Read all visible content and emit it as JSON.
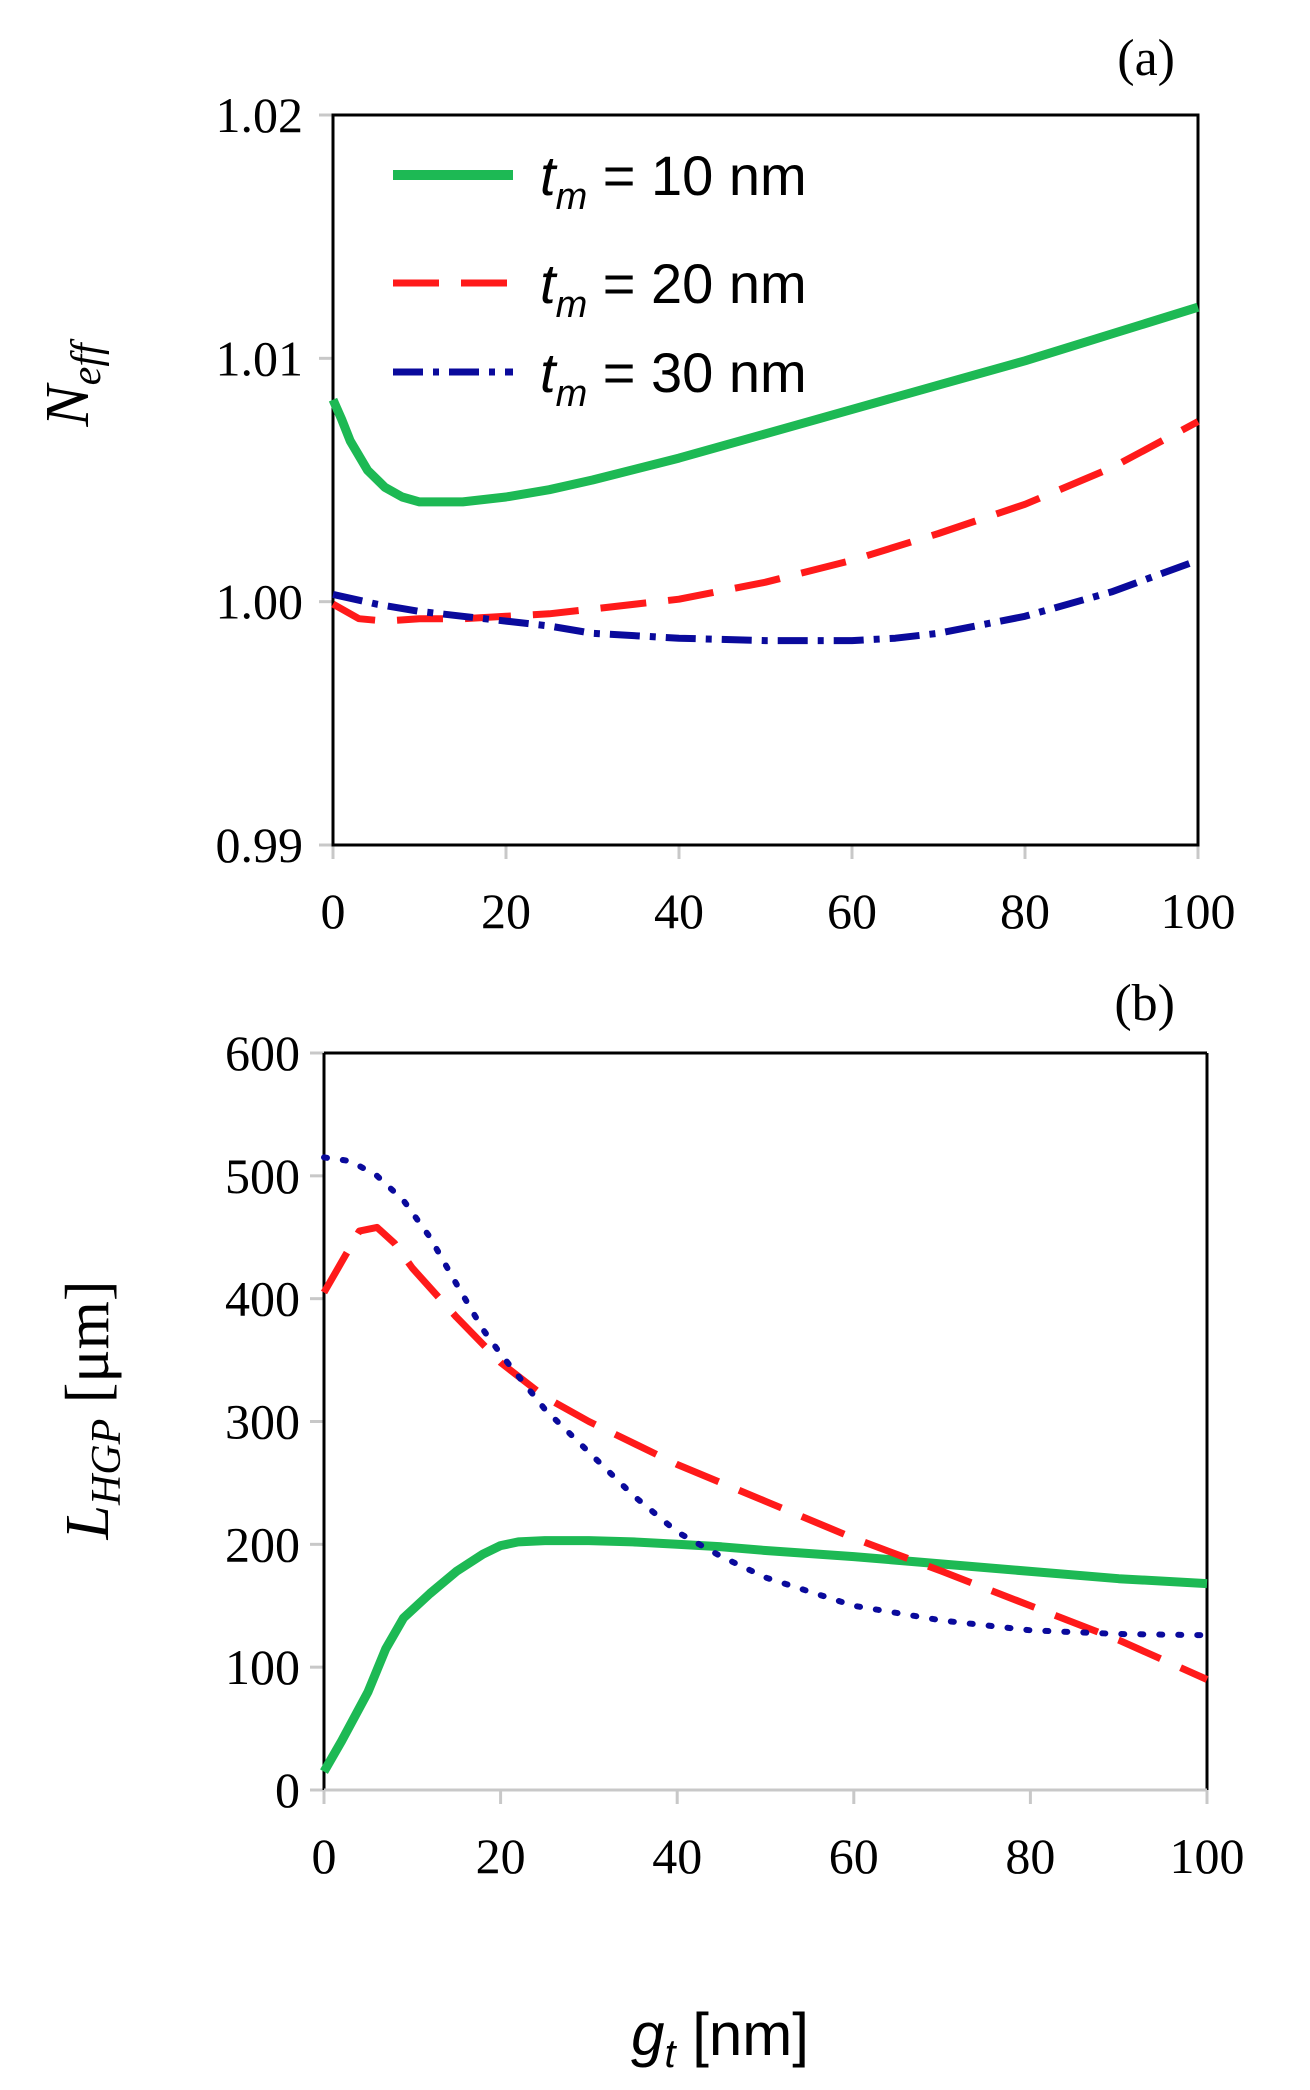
{
  "figure": {
    "xlabel_main": "g",
    "xlabel_sub": "t",
    "xlabel_unit": " [nm]"
  },
  "colors": {
    "green": "#1db954",
    "red": "#ff1a1a",
    "blue": "#0a0a9c",
    "axis": "#000000",
    "tick": "#c8c8c8"
  },
  "chart_data": [
    {
      "id": "a",
      "type": "line",
      "panel_label": "(a)",
      "ylabel_main": "N",
      "ylabel_sub": "eff",
      "xlim": [
        0,
        100
      ],
      "ylim": [
        0.99,
        1.02
      ],
      "x_ticks": [
        "0",
        "20",
        "40",
        "60",
        "80",
        "100"
      ],
      "y_ticks": [
        "0.99",
        "1.00",
        "1.01",
        "1.02"
      ],
      "legend": {
        "placement": "top-left",
        "prefix": "t",
        "prefix_sub": "m"
      },
      "series": [
        {
          "name": "tm = 10 nm",
          "label": " = 10 nm",
          "color": "#1db954",
          "style": "solid",
          "x": [
            0,
            1,
            2,
            4,
            6,
            8,
            10,
            12,
            15,
            20,
            25,
            30,
            40,
            50,
            60,
            70,
            80,
            90,
            100
          ],
          "y": [
            1.0083,
            1.0075,
            1.0066,
            1.0054,
            1.0047,
            1.0043,
            1.0041,
            1.0041,
            1.0041,
            1.0043,
            1.0046,
            1.005,
            1.0059,
            1.0069,
            1.0079,
            1.0089,
            1.0099,
            1.011,
            1.0121
          ]
        },
        {
          "name": "tm = 20 nm",
          "label": " = 20 nm",
          "color": "#ff1a1a",
          "style": "dashed",
          "x": [
            0,
            3,
            6,
            10,
            15,
            20,
            25,
            30,
            40,
            50,
            60,
            70,
            80,
            90,
            100
          ],
          "y": [
            0.9999,
            0.9993,
            0.9992,
            0.9993,
            0.9993,
            0.9994,
            0.9995,
            0.9997,
            1.0001,
            1.0008,
            1.0017,
            1.0028,
            1.004,
            1.0055,
            1.0074
          ]
        },
        {
          "name": "tm = 30 nm",
          "label": " = 30 nm",
          "color": "#0a0a9c",
          "style": "dashdot",
          "x": [
            0,
            5,
            10,
            15,
            20,
            25,
            30,
            40,
            50,
            60,
            65,
            70,
            80,
            90,
            100
          ],
          "y": [
            1.0003,
            0.9999,
            0.9996,
            0.9994,
            0.9992,
            0.999,
            0.9987,
            0.9985,
            0.9984,
            0.9984,
            0.9985,
            0.9987,
            0.9994,
            1.0004,
            1.0017
          ]
        }
      ]
    },
    {
      "id": "b",
      "type": "line",
      "panel_label": "(b)",
      "ylabel_main": "L",
      "ylabel_sub": "HGP",
      "ylabel_unit": " [μm]",
      "xlim": [
        0,
        100
      ],
      "ylim": [
        0,
        600
      ],
      "x_ticks": [
        "0",
        "20",
        "40",
        "60",
        "80",
        "100"
      ],
      "y_ticks": [
        "0",
        "100",
        "200",
        "300",
        "400",
        "500",
        "600"
      ],
      "series": [
        {
          "name": "tm = 10 nm",
          "color": "#1db954",
          "style": "solid",
          "x": [
            0,
            2,
            5,
            7,
            9,
            12,
            15,
            18,
            20,
            22,
            25,
            30,
            35,
            40,
            45,
            50,
            60,
            70,
            80,
            90,
            100
          ],
          "y": [
            15,
            40,
            80,
            115,
            140,
            160,
            178,
            192,
            199,
            202,
            203,
            203,
            202,
            200,
            198,
            195,
            190,
            184,
            178,
            172,
            168
          ]
        },
        {
          "name": "tm = 20 nm",
          "color": "#ff1a1a",
          "style": "dashed",
          "x": [
            0,
            2,
            4,
            6,
            8,
            10,
            15,
            20,
            25,
            30,
            40,
            50,
            60,
            70,
            80,
            90,
            100
          ],
          "y": [
            405,
            430,
            455,
            458,
            445,
            425,
            385,
            348,
            320,
            300,
            265,
            235,
            205,
            178,
            150,
            122,
            90
          ]
        },
        {
          "name": "tm = 30 nm",
          "color": "#0a0a9c",
          "style": "dotted",
          "x": [
            0,
            3,
            6,
            9,
            12,
            15,
            18,
            20,
            25,
            30,
            35,
            40,
            45,
            50,
            60,
            70,
            80,
            90,
            100
          ],
          "y": [
            515,
            512,
            500,
            480,
            450,
            412,
            375,
            355,
            310,
            275,
            240,
            210,
            190,
            173,
            150,
            138,
            130,
            127,
            126
          ]
        }
      ]
    }
  ]
}
